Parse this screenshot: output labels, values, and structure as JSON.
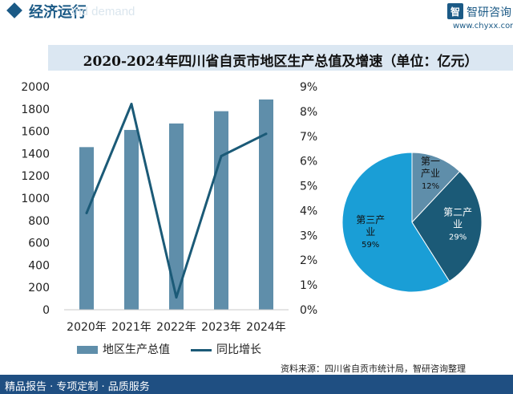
{
  "header": {
    "section_title": "经济运行",
    "ghost_text": "ind demand",
    "logo_mark": "智",
    "logo_name": "智研咨询",
    "logo_url": "www.chyxx.com"
  },
  "title": "2020-2024年四川省自贡市地区生产总值及增速（单位：亿元）",
  "chart_data": [
    {
      "type": "bar",
      "categories": [
        "2020年",
        "2021年",
        "2022年",
        "2023年",
        "2024年"
      ],
      "series": [
        {
          "name": "地区生产总值",
          "type": "bar",
          "axis": "left",
          "values": [
            1458,
            1612,
            1670,
            1780,
            1885
          ]
        },
        {
          "name": "同比增长",
          "type": "line",
          "axis": "right",
          "values": [
            3.9,
            8.3,
            0.5,
            6.2,
            7.1
          ]
        }
      ],
      "y_left": {
        "min": 0,
        "max": 2000,
        "ticks": [
          0,
          200,
          400,
          600,
          800,
          1000,
          1200,
          1400,
          1600,
          1800,
          2000
        ]
      },
      "y_right": {
        "min": 0,
        "max": 9,
        "ticks": [
          "0%",
          "1%",
          "2%",
          "3%",
          "4%",
          "5%",
          "6%",
          "7%",
          "8%",
          "9%"
        ]
      },
      "legend": [
        "地区生产总值",
        "同比增长"
      ],
      "legend_position": "bottom",
      "grid": false,
      "colors": {
        "bar": "#5f8eaa",
        "line": "#1b5a77"
      }
    },
    {
      "type": "pie",
      "slices": [
        {
          "label_lines": [
            "第一",
            "产业"
          ],
          "value": 12,
          "pct": "12%",
          "color": "#5f8eaa"
        },
        {
          "label_lines": [
            "第二产",
            "业"
          ],
          "value": 29,
          "pct": "29%",
          "color": "#1b5a77"
        },
        {
          "label_lines": [
            "第三产",
            "业"
          ],
          "value": 59,
          "pct": "59%",
          "color": "#1a9ed6"
        }
      ]
    }
  ],
  "source": "资料来源：四川省自贡市统计局，智研咨询整理",
  "footer": "精品报告 · 专项定制 · 品质服务",
  "colors": {
    "brand": "#1b5a86",
    "footer_bg": "#1f4f82",
    "title_bar": "#dbe7f2"
  }
}
